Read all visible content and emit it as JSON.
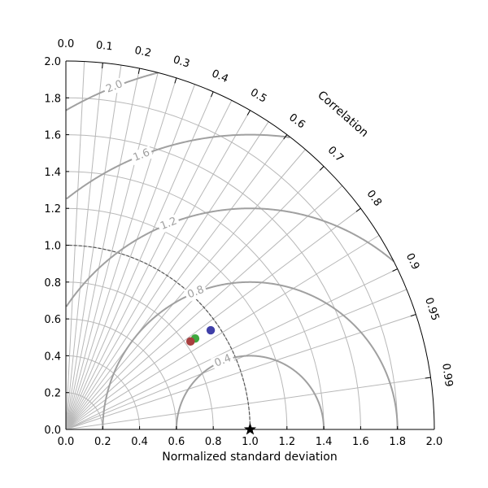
{
  "chart_data": {
    "type": "scatter",
    "subtype": "taylor-diagram",
    "xlabel": "Normalized standard deviation",
    "corr_axis_label": "Correlation",
    "std_range": [
      0,
      2
    ],
    "std_ticks": [
      "0.0",
      "0.2",
      "0.4",
      "0.6",
      "0.8",
      "1.0",
      "1.2",
      "1.4",
      "1.6",
      "1.8",
      "2.0"
    ],
    "correlation_ticks": [
      "0.0",
      "0.1",
      "0.2",
      "0.3",
      "0.4",
      "0.5",
      "0.6",
      "0.7",
      "0.8",
      "0.9",
      "0.95",
      "0.99"
    ],
    "rms_contours": [
      0.4,
      0.8,
      1.2,
      1.6,
      2.0
    ],
    "rms_labels": [
      "0.4",
      "0.8",
      "1.2",
      "1.6",
      "2.0"
    ],
    "reference": {
      "std": 1.0,
      "marker": "star",
      "color": "#000000"
    },
    "grid": true,
    "points": [
      {
        "std": 0.953,
        "corr": 0.825,
        "color": "#3f3fa8"
      },
      {
        "std": 0.858,
        "corr": 0.818,
        "color": "#3fa83f"
      },
      {
        "std": 0.828,
        "corr": 0.817,
        "color": "#a83f3f"
      }
    ]
  }
}
